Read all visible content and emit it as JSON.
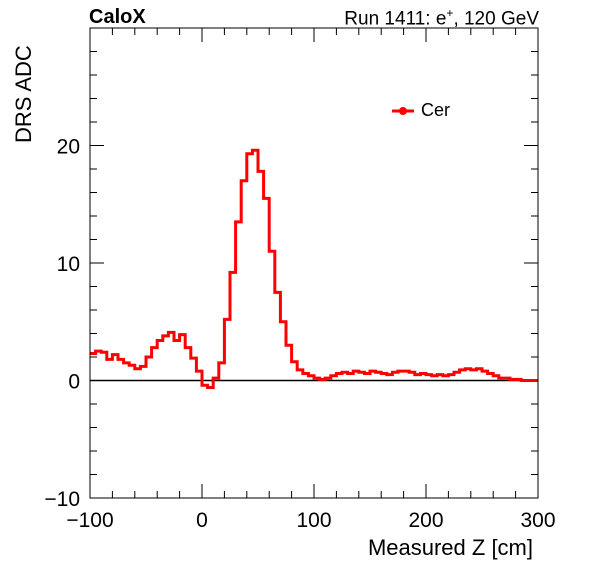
{
  "header": {
    "experiment": "CaloX",
    "run_prefix": "Run 1411: e",
    "run_sup": "+",
    "run_suffix": ", 120 GeV"
  },
  "chart_data": {
    "type": "line",
    "style": "step histogram",
    "xlabel": "Measured Z [cm]",
    "ylabel": "DRS ADC",
    "xlim": [
      -100,
      300
    ],
    "ylim": [
      -10,
      30
    ],
    "x_ticks": [
      -100,
      0,
      100,
      200,
      300
    ],
    "y_ticks": [
      -10,
      0,
      10,
      20
    ],
    "grid": false,
    "legend_position": "top-right",
    "series": [
      {
        "name": "Cer",
        "color": "#ff0000",
        "bin_edges_x": [
          -100,
          -95,
          -90,
          -85,
          -80,
          -75,
          -70,
          -65,
          -60,
          -55,
          -50,
          -45,
          -40,
          -35,
          -30,
          -25,
          -20,
          -15,
          -10,
          -5,
          0,
          5,
          10,
          15,
          20,
          25,
          30,
          35,
          40,
          45,
          50,
          55,
          60,
          65,
          70,
          75,
          80,
          85,
          90,
          95,
          100,
          105,
          110,
          115,
          120,
          125,
          130,
          135,
          140,
          145,
          150,
          155,
          160,
          165,
          170,
          175,
          180,
          185,
          190,
          195,
          200,
          205,
          210,
          215,
          220,
          225,
          230,
          235,
          240,
          245,
          250,
          255,
          260,
          265,
          270,
          275,
          280,
          285,
          290,
          295,
          300
        ],
        "values": [
          2.3,
          2.5,
          2.4,
          1.8,
          2.2,
          1.8,
          1.5,
          1.3,
          1.0,
          1.2,
          2.0,
          2.8,
          3.4,
          3.8,
          4.1,
          3.4,
          3.9,
          2.8,
          1.9,
          0.8,
          -0.4,
          -0.6,
          0.2,
          1.5,
          5.2,
          9.2,
          13.5,
          17.0,
          19.3,
          19.6,
          17.8,
          15.5,
          11.0,
          7.5,
          5.0,
          3.0,
          1.6,
          0.9,
          0.6,
          0.4,
          0.2,
          0.1,
          0.2,
          0.4,
          0.6,
          0.7,
          0.6,
          0.8,
          0.7,
          0.6,
          0.8,
          0.7,
          0.6,
          0.5,
          0.7,
          0.8,
          0.8,
          0.7,
          0.5,
          0.6,
          0.5,
          0.4,
          0.5,
          0.4,
          0.5,
          0.7,
          0.9,
          1.0,
          0.9,
          1.0,
          0.8,
          0.6,
          0.4,
          0.2,
          0.2,
          0.1,
          0.1,
          0.0,
          0.0,
          0.0
        ]
      }
    ]
  }
}
